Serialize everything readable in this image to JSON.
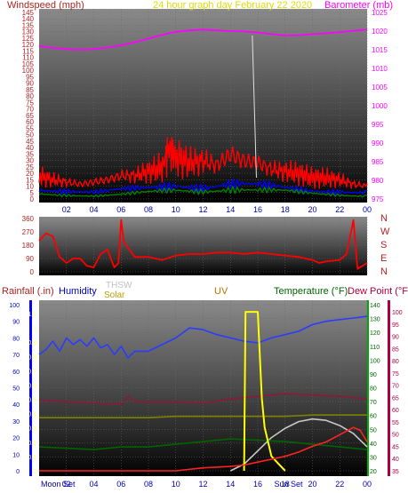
{
  "chart_data": [
    {
      "type": "line",
      "panel": "wind-baro",
      "title": "24 hour graph day  February 22 2020",
      "left_label": "Windspeed (mph)",
      "right_label": "Barometer (mb)",
      "x_ticks": [
        "02",
        "04",
        "06",
        "08",
        "10",
        "12",
        "14",
        "16",
        "18",
        "20",
        "22",
        "00"
      ],
      "left_ticks": [
        "145",
        "140",
        "135",
        "130",
        "125",
        "120",
        "115",
        "110",
        "105",
        "100",
        "95",
        "90",
        "85",
        "80",
        "75",
        "70",
        "65",
        "60",
        "55",
        "50",
        "45",
        "40",
        "35",
        "30",
        "25",
        "20",
        "15",
        "10",
        "5",
        "0"
      ],
      "right_ticks": [
        "1025",
        "1020",
        "1015",
        "1010",
        "1005",
        "1000",
        "995",
        "990",
        "985",
        "980",
        "975"
      ],
      "left_range": [
        0,
        145
      ],
      "right_range": [
        975,
        1025
      ],
      "colors": {
        "wind_gust": "#ff0000",
        "wind_avg": "#0000ff",
        "wind_low": "#008000",
        "barometer": "#ff00ff",
        "left_axis": "#b22222",
        "right_axis": "#ff00ff",
        "title": "#dddd00"
      },
      "series": [
        {
          "name": "Barometer",
          "axis": "right",
          "color": "#ff00ff",
          "x": [
            0,
            1,
            2,
            3,
            4,
            5,
            6,
            7,
            8,
            9,
            10,
            11,
            12,
            13,
            14,
            15,
            16,
            17,
            18,
            19,
            20,
            21,
            22,
            23,
            24
          ],
          "values": [
            1016,
            1015.5,
            1015.2,
            1015,
            1015.2,
            1015.6,
            1016.2,
            1017,
            1018,
            1019,
            1019.8,
            1020.2,
            1020.4,
            1020.2,
            1020,
            1019.9,
            1019.6,
            1019.2,
            1018.8,
            1018.9,
            1019.2,
            1019.4,
            1019.7,
            1020.1,
            1020.4
          ]
        },
        {
          "name": "Wind gust",
          "axis": "left",
          "color": "#ff0000",
          "x": [
            0,
            1,
            2,
            3,
            4,
            5,
            6,
            7,
            8,
            9,
            9.5,
            10,
            11,
            12,
            13,
            14,
            15,
            16,
            17,
            18,
            19,
            20,
            21,
            22,
            23,
            24
          ],
          "values": [
            22,
            18,
            16,
            14,
            16,
            18,
            22,
            22,
            26,
            30,
            48,
            40,
            34,
            36,
            32,
            42,
            36,
            34,
            28,
            26,
            24,
            20,
            20,
            18,
            14,
            12
          ]
        },
        {
          "name": "Wind average",
          "axis": "left",
          "color": "#0000ff",
          "x": [
            0,
            2,
            4,
            6,
            8,
            10,
            12,
            14,
            16,
            18,
            20,
            22,
            24
          ],
          "values": [
            10,
            8,
            6,
            8,
            10,
            14,
            12,
            14,
            12,
            10,
            8,
            8,
            6
          ]
        },
        {
          "name": "Wind low",
          "axis": "left",
          "color": "#008000",
          "x": [
            0,
            2,
            4,
            6,
            8,
            10,
            12,
            14,
            16,
            18,
            20,
            22,
            24
          ],
          "values": [
            5,
            4,
            3,
            4,
            6,
            8,
            8,
            10,
            8,
            7,
            5,
            4,
            3
          ]
        }
      ]
    },
    {
      "type": "line",
      "panel": "wind-direction",
      "y_ticks": [
        "360",
        "270",
        "180",
        "90",
        "0"
      ],
      "right_ticks": [
        "N",
        "W",
        "S",
        "E",
        "N"
      ],
      "y_range": [
        0,
        360
      ],
      "x_ticks": [
        "02",
        "04",
        "06",
        "08",
        "10",
        "12",
        "14",
        "16",
        "18",
        "20",
        "22",
        "00"
      ],
      "series": [
        {
          "name": "Wind direction",
          "color": "#ff0000",
          "x": [
            0,
            0.5,
            1,
            1.5,
            2,
            2.5,
            3,
            3.5,
            4,
            4.5,
            5,
            5.5,
            5.8,
            6,
            6.2,
            7,
            8,
            9,
            10,
            11,
            12,
            13,
            14,
            15,
            16,
            17,
            18,
            19,
            20,
            20.5,
            21,
            22,
            22.5,
            23,
            23.3,
            24
          ],
          "values": [
            210,
            260,
            240,
            100,
            60,
            90,
            90,
            40,
            30,
            120,
            150,
            30,
            60,
            350,
            200,
            100,
            100,
            80,
            110,
            120,
            120,
            130,
            130,
            120,
            130,
            120,
            110,
            100,
            80,
            60,
            70,
            80,
            120,
            350,
            20,
            60
          ]
        }
      ]
    },
    {
      "type": "line",
      "panel": "rain-humidity-temp",
      "labels": {
        "rainfall": "Rainfall (.in)",
        "humidity": "Humidity",
        "thsw": "THSW",
        "solar": "Solar",
        "uv": "UV",
        "temperature": "Temperature (°F)",
        "dewpoint": "Dew Point (°F)"
      },
      "moon_set": "Moon Set",
      "sun_set": "Sun Set",
      "x_ticks": [
        "02",
        "04",
        "06",
        "08",
        "10",
        "12",
        "14",
        "16",
        "18",
        "20",
        "22",
        "00"
      ],
      "rain_ticks": [
        "1.1",
        "1",
        "0.9",
        "0.8",
        "0.7",
        "0.6",
        "0.5",
        "0.4",
        "0.3",
        "0.2",
        "0.1",
        "0"
      ],
      "humidity_ticks": [
        "100",
        "90",
        "80",
        "70",
        "60",
        "50",
        "40",
        "30",
        "20",
        "10",
        "0"
      ],
      "temp_ticks": [
        "140",
        "130",
        "120",
        "110",
        "100",
        "90",
        "80",
        "70",
        "60",
        "50",
        "40",
        "30",
        "20"
      ],
      "dew_ticks": [
        "100",
        "95",
        "90",
        "85",
        "80",
        "75",
        "70",
        "65",
        "60",
        "55",
        "50",
        "45",
        "40",
        "35"
      ],
      "rain_range": [
        0,
        1.15
      ],
      "humidity_range": [
        0,
        100
      ],
      "temp_range": [
        20,
        145
      ],
      "colors": {
        "rain": "#0000ff",
        "humidity": "#0000ff",
        "thsw": "#d0d0d0",
        "solar": "#b8a000",
        "uv": "#c07000",
        "temperature": "#006400",
        "dewpoint": "#b0003a"
      },
      "series": [
        {
          "name": "Humidity",
          "axis": "humidity",
          "color": "#2a3cff",
          "x": [
            0,
            0.5,
            1,
            1.5,
            2,
            2.5,
            3,
            3.5,
            4,
            4.5,
            5,
            5.5,
            6,
            6.5,
            7,
            8,
            9,
            10,
            11,
            12,
            13,
            14,
            15,
            16,
            17,
            18,
            19,
            20,
            21,
            22,
            23,
            24
          ],
          "values": [
            70,
            73,
            78,
            72,
            80,
            76,
            79,
            75,
            80,
            74,
            76,
            70,
            75,
            68,
            72,
            72,
            76,
            80,
            86,
            85,
            82,
            80,
            78,
            77,
            80,
            82,
            84,
            88,
            90,
            91,
            92,
            93
          ]
        },
        {
          "name": "Temperature",
          "axis": "temp",
          "color": "#8b1a3a",
          "x": [
            0,
            2,
            4,
            6,
            6.5,
            7,
            8,
            10,
            12,
            14,
            16,
            18,
            20,
            22,
            24
          ],
          "values": [
            73,
            72,
            71,
            70,
            76,
            72,
            72,
            72,
            71,
            74,
            76,
            78,
            77,
            76,
            74
          ]
        },
        {
          "name": "Dew Point",
          "axis": "temp",
          "color": "#808000",
          "x": [
            0,
            2,
            4,
            6,
            8,
            10,
            12,
            14,
            16,
            18,
            20,
            22,
            24
          ],
          "values": [
            60,
            60,
            60,
            60,
            60,
            61,
            61,
            61,
            61,
            61,
            62,
            62,
            62
          ]
        },
        {
          "name": "Solar",
          "axis": "temp",
          "color": "#c8c8c8",
          "x": [
            14,
            15,
            16,
            17,
            18,
            19,
            20,
            21,
            22,
            23,
            24
          ],
          "values": [
            20,
            25,
            35,
            45,
            52,
            57,
            59,
            58,
            54,
            48,
            38
          ]
        },
        {
          "name": "THSW",
          "axis": "temp",
          "color": "#006400",
          "x": [
            0,
            2,
            4,
            6,
            8,
            10,
            12,
            14,
            16,
            18,
            20,
            22,
            24
          ],
          "values": [
            38,
            37,
            36,
            38,
            38,
            40,
            42,
            44,
            43,
            42,
            40,
            38,
            36
          ]
        },
        {
          "name": "UV",
          "axis": "rain",
          "color": "#ffff00",
          "x": [
            15,
            15.1,
            16,
            16.1,
            16.3,
            16.5,
            17,
            17.5,
            18
          ],
          "values": [
            0,
            1.1,
            1.1,
            0.9,
            0.5,
            0.3,
            0.1,
            0.05,
            0
          ]
        },
        {
          "name": "Rainfall",
          "axis": "rain",
          "color": "#ff2222",
          "x": [
            0,
            7,
            10,
            12,
            14,
            15,
            16,
            17,
            18,
            19,
            20,
            21,
            22,
            23,
            23.5,
            24
          ],
          "values": [
            0,
            0,
            0,
            0.02,
            0.03,
            0.04,
            0.06,
            0.08,
            0.1,
            0.13,
            0.17,
            0.2,
            0.25,
            0.3,
            0.28,
            0.2
          ]
        }
      ]
    }
  ]
}
